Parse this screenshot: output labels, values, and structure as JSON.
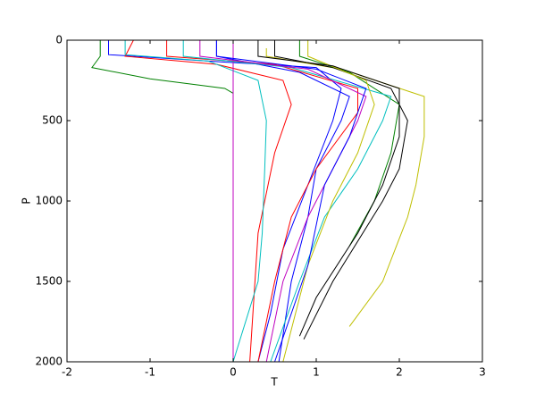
{
  "chart_data": {
    "type": "line",
    "xlabel": "T",
    "ylabel": "P",
    "xlim": [
      -2,
      3
    ],
    "xticks": [
      -2,
      -1,
      0,
      1,
      2,
      3
    ],
    "ylim": [
      0,
      2000
    ],
    "yticks": [
      0,
      500,
      1000,
      1500,
      2000
    ],
    "invert_y": true,
    "grid": false,
    "series": [
      {
        "color": "#0000ff",
        "x": [
          -1.5,
          -1.5,
          -0.3,
          1.0,
          1.3,
          1.2,
          0.9,
          0.6,
          0.45,
          0.3
        ],
        "values": [
          0,
          90,
          130,
          170,
          300,
          500,
          900,
          1300,
          1700,
          2000
        ]
      },
      {
        "color": "#008000",
        "x": [
          -1.6,
          -1.6,
          -1.7,
          -1.0,
          -0.4,
          -0.1,
          0.0
        ],
        "values": [
          0,
          100,
          170,
          240,
          280,
          300,
          330
        ]
      },
      {
        "color": "#ff0000",
        "x": [
          -1.2,
          -1.3,
          -0.2,
          0.6,
          0.7,
          0.5,
          0.3,
          0.2
        ],
        "values": [
          0,
          100,
          150,
          250,
          400,
          700,
          1200,
          2000
        ]
      },
      {
        "color": "#00bfbf",
        "x": [
          -1.3,
          -1.3,
          -0.3,
          0.3,
          0.4,
          0.38,
          0.35,
          0.3,
          0.0
        ],
        "values": [
          0,
          90,
          130,
          250,
          500,
          800,
          1200,
          1500,
          2000
        ]
      },
      {
        "color": "#bf00bf",
        "x": [
          0.0,
          0.0
        ],
        "values": [
          0,
          2000
        ]
      },
      {
        "color": "#bfbf00",
        "x": [
          0.4,
          0.4,
          1.3,
          2.3,
          2.3,
          2.2,
          2.1,
          1.8,
          1.4
        ],
        "values": [
          50,
          100,
          180,
          350,
          600,
          900,
          1100,
          1500,
          1780
        ]
      },
      {
        "color": "#000000",
        "x": [
          0.5,
          0.5,
          1.2,
          1.9,
          2.1,
          2.0,
          1.8,
          1.2,
          0.85
        ],
        "values": [
          0,
          100,
          170,
          300,
          500,
          800,
          1000,
          1500,
          1860
        ]
      },
      {
        "color": "#0000ff",
        "x": [
          -0.2,
          -0.2,
          0.8,
          1.4,
          1.3,
          1.0,
          0.9,
          0.7,
          0.55
        ],
        "values": [
          0,
          100,
          200,
          350,
          500,
          800,
          1100,
          1500,
          2000
        ]
      },
      {
        "color": "#008000",
        "x": [
          0.8,
          0.8,
          1.4,
          2.0,
          1.9,
          1.7,
          1.4
        ],
        "values": [
          0,
          100,
          200,
          400,
          700,
          1000,
          1280
        ]
      },
      {
        "color": "#ff0000",
        "x": [
          -0.8,
          -0.8,
          0.5,
          1.5,
          1.5,
          1.0,
          0.7,
          0.5,
          0.3
        ],
        "values": [
          0,
          100,
          150,
          300,
          450,
          800,
          1100,
          1500,
          2000
        ]
      },
      {
        "color": "#00bfbf",
        "x": [
          -0.6,
          -0.6,
          0.7,
          1.9,
          1.8,
          1.5,
          1.1,
          0.8,
          0.45
        ],
        "values": [
          0,
          100,
          170,
          350,
          500,
          800,
          1100,
          1500,
          2000
        ]
      },
      {
        "color": "#bf00bf",
        "x": [
          -0.4,
          -0.4,
          0.9,
          1.6,
          1.5,
          1.2,
          0.9,
          0.6,
          0.4
        ],
        "values": [
          0,
          100,
          180,
          350,
          500,
          800,
          1100,
          1500,
          2000
        ]
      },
      {
        "color": "#bfbf00",
        "x": [
          0.9,
          0.9,
          1.6,
          1.7,
          1.5,
          1.2,
          0.9,
          0.6
        ],
        "values": [
          0,
          100,
          250,
          400,
          700,
          1000,
          1400,
          2000
        ]
      },
      {
        "color": "#000000",
        "x": [
          0.3,
          0.3,
          1.2,
          2.0,
          2.0,
          1.8,
          1.5,
          1.0,
          0.8
        ],
        "values": [
          0,
          100,
          160,
          300,
          600,
          900,
          1200,
          1600,
          1840
        ]
      },
      {
        "color": "#0000ff",
        "x": [
          -0.2,
          -0.2,
          1.0,
          1.6,
          1.4,
          1.1,
          0.9,
          0.5
        ],
        "values": [
          0,
          100,
          180,
          300,
          600,
          900,
          1400,
          2000
        ]
      }
    ]
  }
}
